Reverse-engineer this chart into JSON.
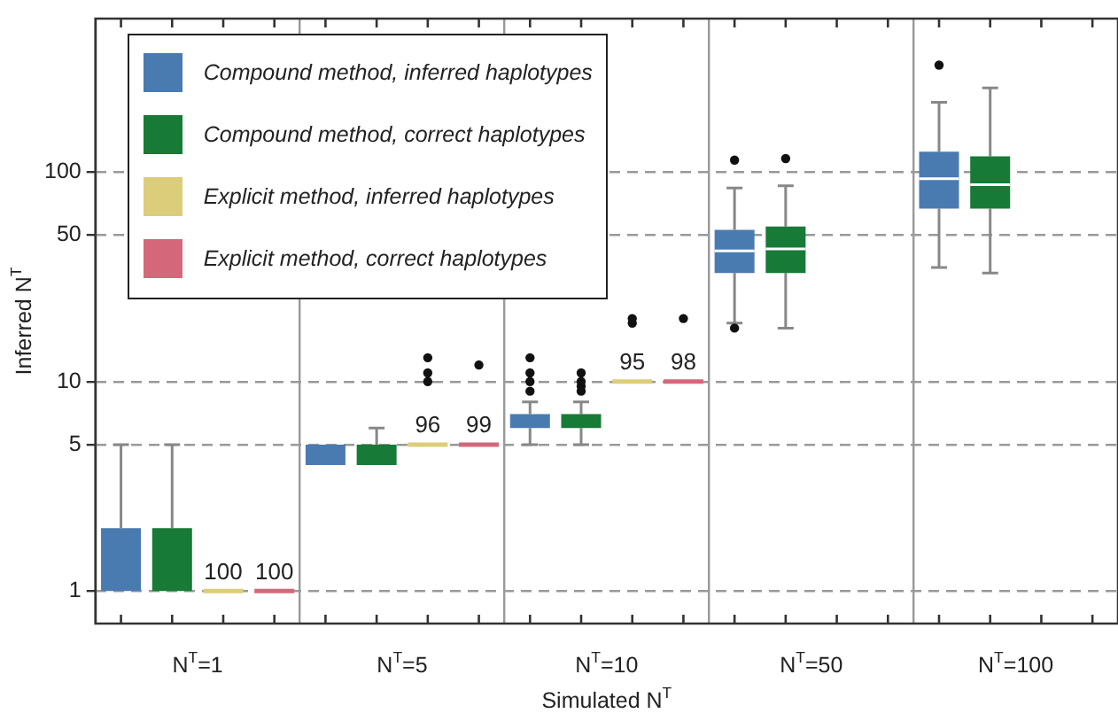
{
  "chart_data": {
    "type": "box",
    "xlabel": "Simulated N$^{T}$",
    "ylabel": "Inferred N$^{T}$",
    "categories": [
      "N$^{T}$=1",
      "N$^{T}$=5",
      "N$^{T}$=10",
      "N$^{T}$=50",
      "N$^{T}$=100"
    ],
    "log": true,
    "ylim": [
      0.7,
      540
    ],
    "yticks": [
      1,
      5,
      10,
      50,
      100
    ],
    "grid": true,
    "legend": "top left",
    "series": [
      {
        "name": "Compound method, inferred haplotypes",
        "color": "#4a7bb0",
        "boxes": [
          {
            "low": 1,
            "q1": 1,
            "median": 1,
            "q3": 2,
            "high": 5
          },
          {
            "low": 4,
            "q1": 4,
            "median": 5,
            "q3": 5,
            "high": 5
          },
          {
            "low": 5,
            "q1": 6,
            "median": 6,
            "q3": 7,
            "high": 8,
            "outliers": [
              9,
              10,
              11,
              13
            ]
          },
          {
            "low": 19,
            "q1": 33,
            "median": 42,
            "q3": 53,
            "high": 84,
            "outliers": [
              18,
              114
            ]
          },
          {
            "low": 35,
            "q1": 67,
            "median": 93,
            "q3": 125,
            "high": 215,
            "outliers": [
              324
            ]
          }
        ]
      },
      {
        "name": "Compound method, correct haplotypes",
        "color": "#177a36",
        "boxes": [
          {
            "low": 1,
            "q1": 1,
            "median": 1,
            "q3": 2,
            "high": 5
          },
          {
            "low": 4,
            "q1": 4,
            "median": 4,
            "q3": 5,
            "high": 6
          },
          {
            "low": 5,
            "q1": 6,
            "median": 6,
            "q3": 7,
            "high": 8,
            "outliers": [
              9,
              9.5,
              10,
              11
            ]
          },
          {
            "low": 18,
            "q1": 33,
            "median": 43,
            "q3": 55,
            "high": 86,
            "outliers": [
              116
            ]
          },
          {
            "low": 33,
            "q1": 67,
            "median": 87,
            "q3": 119,
            "high": 252
          }
        ]
      },
      {
        "name": "Explicit method, inferred haplotypes",
        "color": "#dccd7a",
        "boxes": [
          {
            "low": 1,
            "q1": 1,
            "median": 1,
            "q3": 1,
            "high": 1
          },
          {
            "low": 5,
            "q1": 5,
            "median": 5,
            "q3": 5,
            "high": 5,
            "outliers": [
              10,
              11,
              13
            ]
          },
          {
            "low": 10,
            "q1": 10,
            "median": 10,
            "q3": 10,
            "high": 10,
            "outliers": [
              19,
              20
            ]
          },
          null,
          null
        ],
        "value_labels": [
          "100",
          "96",
          "95",
          null,
          null
        ]
      },
      {
        "name": "Explicit method, correct haplotypes",
        "color": "#d4687a",
        "boxes": [
          {
            "low": 1,
            "q1": 1,
            "median": 1,
            "q3": 1,
            "high": 1
          },
          {
            "low": 5,
            "q1": 5,
            "median": 5,
            "q3": 5,
            "high": 5,
            "outliers": [
              12
            ]
          },
          {
            "low": 10,
            "q1": 10,
            "median": 10,
            "q3": 10,
            "high": 10,
            "outliers": [
              20
            ]
          },
          null,
          null
        ],
        "value_labels": [
          "100",
          "99",
          "98",
          null,
          null
        ]
      }
    ]
  }
}
